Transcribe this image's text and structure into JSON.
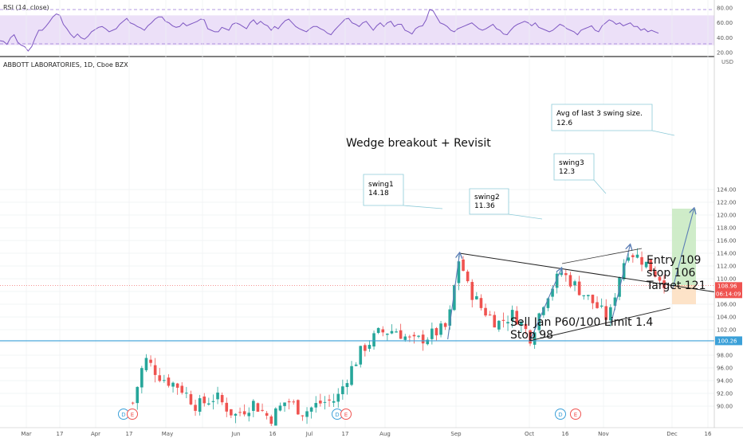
{
  "header": {
    "title": "ABBOTT LABORATORIES, 1D, Cboe BZX",
    "rsi_label": "RSI (14, close)",
    "currency": "USD"
  },
  "colors": {
    "up": "#26a69a",
    "down": "#ef5350",
    "rsi_line": "#7e57c2",
    "rsi_band": "#e9dcf7",
    "support_line": "#3ba0d8",
    "target_zone": "#c7e9c0",
    "stop_zone": "#fde0c2"
  },
  "price_axis": {
    "ticks": [
      "124.00",
      "122.00",
      "120.00",
      "118.00",
      "116.00",
      "114.00",
      "112.00",
      "110.00",
      "108.00",
      "106.00",
      "104.00",
      "102.00",
      "100.00",
      "98.00",
      "96.00",
      "94.00",
      "92.00",
      "90.00"
    ],
    "last_price": "108.96",
    "countdown": "06:14:09",
    "level_label": "100.26"
  },
  "rsi_axis": {
    "ticks": [
      "80.00",
      "60.00",
      "40.00",
      "20.00"
    ]
  },
  "time_axis": {
    "ticks": [
      "Mar",
      "17",
      "Apr",
      "17",
      "May",
      "Jun",
      "16",
      "Jul",
      "17",
      "Aug",
      "Sep",
      "Oct",
      "16",
      "Nov",
      "Dec",
      "16"
    ]
  },
  "annotations": {
    "wedge_title": "Wedge breakout  + Revisit",
    "swing1": [
      "swing1",
      "14.18"
    ],
    "swing2": [
      "swing2",
      "11.36"
    ],
    "swing3": [
      "swing3",
      "12.3"
    ],
    "avg_swing": [
      "Avg of last 3 swing size.",
      "12.6"
    ],
    "trade_plan": [
      "Entry 109",
      "stop 106",
      "Target 121"
    ],
    "option_plan": [
      "Sell Jan P60/100 Limit 1.4",
      "Stop 98"
    ]
  },
  "events": [
    "D",
    "E",
    "D",
    "E",
    "D",
    "E"
  ],
  "chart_data": {
    "type": "candlestick",
    "title": "ABBOTT LABORATORIES, 1D, Cboe BZX",
    "y_unit": "USD",
    "ylim": [
      89,
      125
    ],
    "close_series": [
      {
        "date": "2020-04-15",
        "close": 90.5
      },
      {
        "date": "2020-04-20",
        "close": 97.5
      },
      {
        "date": "2020-04-27",
        "close": 94.5
      },
      {
        "date": "2020-05-05",
        "close": 93.0
      },
      {
        "date": "2020-05-12",
        "close": 90.0
      },
      {
        "date": "2020-05-20",
        "close": 91.5
      },
      {
        "date": "2020-05-28",
        "close": 88.5
      },
      {
        "date": "2020-06-05",
        "close": 90.5
      },
      {
        "date": "2020-06-12",
        "close": 88.0
      },
      {
        "date": "2020-06-19",
        "close": 91.0
      },
      {
        "date": "2020-06-26",
        "close": 89.0
      },
      {
        "date": "2020-07-03",
        "close": 90.5
      },
      {
        "date": "2020-07-10",
        "close": 91.0
      },
      {
        "date": "2020-07-15",
        "close": 95.0
      },
      {
        "date": "2020-07-21",
        "close": 99.0
      },
      {
        "date": "2020-07-28",
        "close": 101.5
      },
      {
        "date": "2020-08-04",
        "close": 102.0
      },
      {
        "date": "2020-08-11",
        "close": 100.0
      },
      {
        "date": "2020-08-18",
        "close": 101.0
      },
      {
        "date": "2020-08-26",
        "close": 102.5
      },
      {
        "date": "2020-08-31",
        "close": 113.8
      },
      {
        "date": "2020-09-03",
        "close": 109.0
      },
      {
        "date": "2020-09-09",
        "close": 105.5
      },
      {
        "date": "2020-09-16",
        "close": 103.0
      },
      {
        "date": "2020-09-23",
        "close": 104.5
      },
      {
        "date": "2020-09-30",
        "close": 100.8
      },
      {
        "date": "2020-10-06",
        "close": 107.0
      },
      {
        "date": "2020-10-13",
        "close": 111.0
      },
      {
        "date": "2020-10-20",
        "close": 108.5
      },
      {
        "date": "2020-10-27",
        "close": 106.0
      },
      {
        "date": "2020-11-02",
        "close": 103.5
      },
      {
        "date": "2020-11-06",
        "close": 110.0
      },
      {
        "date": "2020-11-10",
        "close": 114.5
      },
      {
        "date": "2020-11-16",
        "close": 113.0
      },
      {
        "date": "2020-11-20",
        "close": 111.5
      },
      {
        "date": "2020-11-27",
        "close": 108.96
      }
    ],
    "lines": {
      "wedge_upper": {
        "from": {
          "date": "2020-08-31",
          "price": 114
        },
        "to": {
          "date": "2020-12-19",
          "price": 107.8
        }
      },
      "wedge_lower": {
        "from": {
          "date": "2020-09-30",
          "price": 100.3
        },
        "to": {
          "date": "2020-11-28",
          "price": 105.4
        }
      },
      "horizontal_level": 100.26
    },
    "swing_arrows": [
      {
        "from": {
          "date": "2020-08-26",
          "price": 100.5
        },
        "to": {
          "date": "2020-08-31",
          "price": 114
        }
      },
      {
        "from": {
          "date": "2020-09-30",
          "price": 100.5
        },
        "to": {
          "date": "2020-10-13",
          "price": 111.6
        }
      },
      {
        "from": {
          "date": "2020-11-03",
          "price": 103.0
        },
        "to": {
          "date": "2020-11-11",
          "price": 115.3
        }
      },
      {
        "from": {
          "date": "2020-11-29",
          "price": 108.5
        },
        "to": {
          "date": "2020-12-08",
          "price": 121
        }
      }
    ],
    "position": {
      "entry": 109,
      "stop": 106,
      "target": 121
    },
    "rsi": {
      "ylim": [
        20,
        82
      ],
      "levels": [
        30,
        70
      ],
      "values": [
        36,
        35,
        31,
        40,
        44,
        34,
        30,
        28,
        22,
        28,
        40,
        50,
        50,
        55,
        61,
        68,
        72,
        70,
        58,
        52,
        45,
        40,
        45,
        40,
        38,
        42,
        48,
        51,
        54,
        55,
        52,
        48,
        50,
        52,
        58,
        62,
        66,
        60,
        58,
        55,
        53,
        50,
        56,
        60,
        65,
        68,
        68,
        62,
        60,
        56,
        54,
        55,
        60,
        56,
        58,
        60,
        62,
        65,
        64,
        52,
        50,
        48,
        48,
        54,
        52,
        50,
        58,
        60,
        58,
        55,
        52,
        60,
        64,
        58,
        62,
        58,
        56,
        50,
        55,
        52,
        58,
        63,
        65,
        60,
        55,
        52,
        50,
        48,
        52,
        55,
        55,
        52,
        50,
        46,
        44,
        50,
        55,
        60,
        65,
        66,
        60,
        58,
        55,
        60,
        62,
        56,
        50,
        56,
        60,
        55,
        60,
        62,
        55,
        58,
        58,
        50,
        48,
        45,
        52,
        55,
        56,
        64,
        78,
        76,
        68,
        60,
        58,
        55,
        50,
        48,
        52,
        54,
        56,
        58,
        60,
        56,
        52,
        50,
        52,
        55,
        58,
        52,
        50,
        45,
        44,
        50,
        55,
        58,
        60,
        62,
        60,
        56,
        60,
        54,
        52,
        50,
        48,
        50,
        54,
        58,
        56,
        52,
        50,
        48,
        44,
        50,
        52,
        54,
        56,
        50,
        48,
        56,
        60,
        64,
        62,
        58,
        60,
        56,
        58,
        60,
        55,
        55,
        50,
        52,
        48,
        50,
        48,
        46
      ]
    }
  }
}
